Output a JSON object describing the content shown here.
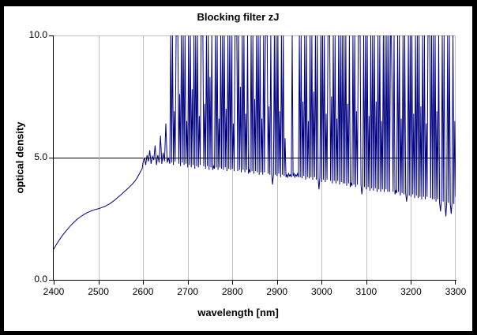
{
  "frame": {
    "border_color": "#000000",
    "background": "#ffffff"
  },
  "chart_data": {
    "type": "line",
    "title": "Blocking filter zJ",
    "xlabel": "wavelength [nm]",
    "ylabel": "optical density",
    "xlim": [
      2400,
      3300
    ],
    "ylim": [
      0,
      10
    ],
    "x_ticks": [
      2400,
      2500,
      2600,
      2700,
      2800,
      2900,
      3000,
      3100,
      3200,
      3300
    ],
    "y_ticks": [
      {
        "value": 0,
        "label": "0.0"
      },
      {
        "value": 5,
        "label": "5.0"
      },
      {
        "value": 10,
        "label": "10.0"
      }
    ],
    "grid": {
      "vertical_gridlines": true,
      "vertical_color": "#c0c0c0",
      "top_line_color": "#c0c0c0",
      "mid_line_value": 5.0,
      "mid_line_color": "#000000",
      "legend": "none"
    },
    "clip_note": "spikes clipped at optical density 10.0",
    "series": [
      {
        "name": "optical density",
        "color": "#000080",
        "xy": [
          2400,
          1.25,
          2406,
          1.45,
          2412,
          1.62,
          2418,
          1.78,
          2424,
          1.92,
          2430,
          2.05,
          2436,
          2.18,
          2442,
          2.3,
          2448,
          2.4,
          2454,
          2.5,
          2460,
          2.58,
          2466,
          2.65,
          2472,
          2.72,
          2478,
          2.77,
          2484,
          2.82,
          2490,
          2.86,
          2496,
          2.89,
          2502,
          2.92,
          2508,
          2.96,
          2514,
          3.0,
          2520,
          3.06,
          2526,
          3.12,
          2532,
          3.2,
          2538,
          3.28,
          2544,
          3.38,
          2550,
          3.47,
          2556,
          3.57,
          2562,
          3.67,
          2568,
          3.77,
          2574,
          3.88,
          2580,
          4.0,
          2586,
          4.15,
          2592,
          4.35,
          2598,
          4.55,
          2600,
          4.8,
          2603,
          5.0,
          2606,
          4.7,
          2609,
          5.1,
          2612,
          4.85,
          2615,
          5.3,
          2618,
          4.75,
          2621,
          5.05,
          2624,
          4.9,
          2627,
          5.5,
          2630,
          4.7,
          2633,
          5.1,
          2636,
          4.8,
          2639,
          5.9,
          2642,
          4.75,
          2645,
          5.2,
          2648,
          4.85,
          2651,
          6.4,
          2654,
          4.8,
          2657,
          5.0,
          2660,
          4.75,
          2662,
          10,
          2664,
          4.8,
          2666,
          10,
          2668,
          4.7,
          2670,
          6.9,
          2672,
          4.85,
          2674,
          10,
          2676,
          10,
          2678,
          10,
          2680,
          4.75,
          2682,
          7.6,
          2684,
          4.65,
          2686,
          10,
          2688,
          4.8,
          2690,
          10,
          2692,
          4.7,
          2694,
          10,
          2696,
          4.75,
          2698,
          6.5,
          2700,
          4.6,
          2702,
          10,
          2704,
          4.7,
          2706,
          10,
          2708,
          4.6,
          2710,
          7.8,
          2712,
          4.7,
          2714,
          10,
          2716,
          4.55,
          2718,
          10,
          2720,
          4.65,
          2722,
          10,
          2724,
          4.6,
          2726,
          6.7,
          2728,
          4.7,
          2730,
          10,
          2732,
          10,
          2734,
          10,
          2736,
          4.65,
          2738,
          7.2,
          2740,
          4.55,
          2742,
          10,
          2744,
          4.65,
          2746,
          10,
          2748,
          4.5,
          2750,
          8.3,
          2752,
          4.6,
          2754,
          10,
          2756,
          4.5,
          2758,
          4.65,
          2760,
          4.55,
          2762,
          10,
          2764,
          4.6,
          2766,
          10,
          2768,
          4.5,
          2770,
          6.6,
          2772,
          4.6,
          2774,
          10,
          2776,
          4.55,
          2778,
          10,
          2780,
          4.5,
          2782,
          10,
          2784,
          4.6,
          2786,
          7.0,
          2788,
          4.45,
          2790,
          10,
          2792,
          4.55,
          2794,
          10,
          2796,
          4.5,
          2798,
          10,
          2800,
          4.55,
          2802,
          6.4,
          2804,
          4.45,
          2806,
          10,
          2808,
          10,
          2810,
          10,
          2812,
          4.45,
          2814,
          10,
          2816,
          4.5,
          2818,
          7.9,
          2820,
          4.4,
          2822,
          10,
          2824,
          4.5,
          2826,
          10,
          2828,
          4.4,
          2830,
          6.8,
          2832,
          4.5,
          2834,
          10,
          2836,
          4.35,
          2838,
          4.5,
          2840,
          4.4,
          2842,
          10,
          2844,
          4.45,
          2846,
          10,
          2848,
          4.35,
          2850,
          7.4,
          2852,
          4.45,
          2854,
          10,
          2856,
          4.4,
          2858,
          10,
          2860,
          4.3,
          2862,
          10,
          2864,
          4.4,
          2866,
          6.6,
          2868,
          4.3,
          2870,
          10,
          2872,
          4.4,
          2874,
          10,
          2876,
          10,
          2878,
          10,
          2880,
          4.35,
          2882,
          7.1,
          2884,
          4.3,
          2886,
          10,
          2888,
          4.35,
          2890,
          3.9,
          2892,
          4.3,
          2894,
          10,
          2896,
          4.3,
          2898,
          10,
          2900,
          4.25,
          2902,
          10,
          2904,
          4.35,
          2906,
          6.9,
          2908,
          4.2,
          2910,
          10,
          2912,
          4.3,
          2914,
          10,
          2916,
          4.25,
          2918,
          5.8,
          2920,
          4.2,
          2922,
          4.3,
          2924,
          4.2,
          2926,
          4.35,
          2928,
          4.25,
          2930,
          4.3,
          2932,
          4.2,
          2934,
          10,
          2936,
          4.25,
          2938,
          4.35,
          2940,
          4.2,
          2942,
          4.3,
          2944,
          4.25,
          2946,
          4.35,
          2948,
          4.2,
          2950,
          10,
          2952,
          4.2,
          2954,
          10,
          2956,
          4.15,
          2958,
          7.3,
          2960,
          4.25,
          2962,
          10,
          2964,
          4.1,
          2966,
          10,
          2968,
          4.2,
          2970,
          6.5,
          2972,
          4.15,
          2974,
          10,
          2976,
          4.2,
          2978,
          10,
          2980,
          4.1,
          2982,
          7.7,
          2984,
          4.2,
          2986,
          10,
          2988,
          4.1,
          2990,
          10,
          2992,
          4.15,
          2994,
          3.7,
          2996,
          4.2,
          2998,
          10,
          3000,
          4.0,
          3002,
          10,
          3004,
          4.1,
          3006,
          10,
          3008,
          4.0,
          3010,
          6.8,
          3012,
          4.1,
          3014,
          10,
          3016,
          10,
          3018,
          10,
          3020,
          4.05,
          3022,
          7.5,
          3024,
          3.95,
          3026,
          10,
          3028,
          4.05,
          3030,
          10,
          3032,
          3.95,
          3034,
          6.6,
          3036,
          4.05,
          3038,
          10,
          3040,
          3.9,
          3042,
          10,
          3044,
          4.0,
          3046,
          10,
          3048,
          3.95,
          3050,
          10,
          3052,
          3.95,
          3054,
          10,
          3056,
          3.85,
          3058,
          7.2,
          3060,
          3.95,
          3062,
          10,
          3064,
          3.8,
          3066,
          3.95,
          3068,
          3.85,
          3070,
          10,
          3072,
          3.9,
          3074,
          10,
          3076,
          3.8,
          3078,
          6.9,
          3080,
          3.9,
          3082,
          10,
          3084,
          10,
          3086,
          10,
          3088,
          3.9,
          3090,
          3.5,
          3092,
          3.85,
          3094,
          10,
          3096,
          3.8,
          3098,
          10,
          3100,
          3.7,
          3102,
          10,
          3104,
          3.8,
          3106,
          6.7,
          3108,
          3.65,
          3110,
          10,
          3112,
          3.75,
          3114,
          10,
          3116,
          3.65,
          3118,
          10,
          3120,
          3.75,
          3122,
          7.3,
          3124,
          3.6,
          3126,
          10,
          3128,
          3.7,
          3130,
          10,
          3132,
          3.6,
          3134,
          6.5,
          3136,
          3.7,
          3138,
          10,
          3140,
          3.6,
          3142,
          10,
          3144,
          3.7,
          3146,
          10,
          3148,
          3.6,
          3150,
          10,
          3152,
          3.6,
          3154,
          10,
          3156,
          10,
          3158,
          7.0,
          3160,
          3.6,
          3162,
          10,
          3164,
          3.5,
          3166,
          3.65,
          3168,
          3.55,
          3170,
          10,
          3172,
          3.6,
          3174,
          10,
          3176,
          3.45,
          3178,
          6.6,
          3180,
          3.55,
          3182,
          10,
          3184,
          3.5,
          3186,
          10,
          3188,
          3.55,
          3190,
          3.2,
          3192,
          3.5,
          3194,
          10,
          3196,
          3.45,
          3198,
          10,
          3200,
          3.4,
          3202,
          10,
          3204,
          3.5,
          3206,
          6.8,
          3208,
          3.35,
          3210,
          10,
          3212,
          3.45,
          3214,
          10,
          3216,
          3.35,
          3218,
          10,
          3220,
          3.4,
          3222,
          7.1,
          3224,
          3.3,
          3226,
          10,
          3228,
          3.4,
          3230,
          10,
          3232,
          3.3,
          3234,
          6.4,
          3236,
          3.4,
          3238,
          10,
          3240,
          10,
          3242,
          10,
          3244,
          3.35,
          3246,
          10,
          3248,
          3.3,
          3250,
          10,
          3252,
          3.3,
          3254,
          10,
          3256,
          3.2,
          3258,
          6.9,
          3260,
          3.3,
          3262,
          10,
          3264,
          3.15,
          3266,
          2.8,
          3268,
          3.25,
          3270,
          10,
          3272,
          3.2,
          3274,
          10,
          3276,
          3.1,
          3278,
          2.6,
          3280,
          3.2,
          3282,
          10,
          3284,
          3.15,
          3286,
          10,
          3288,
          3.1,
          3290,
          2.7,
          3292,
          3.2,
          3294,
          10,
          3296,
          3.1,
          3298,
          6.5,
          3300,
          3.4
        ]
      }
    ]
  }
}
